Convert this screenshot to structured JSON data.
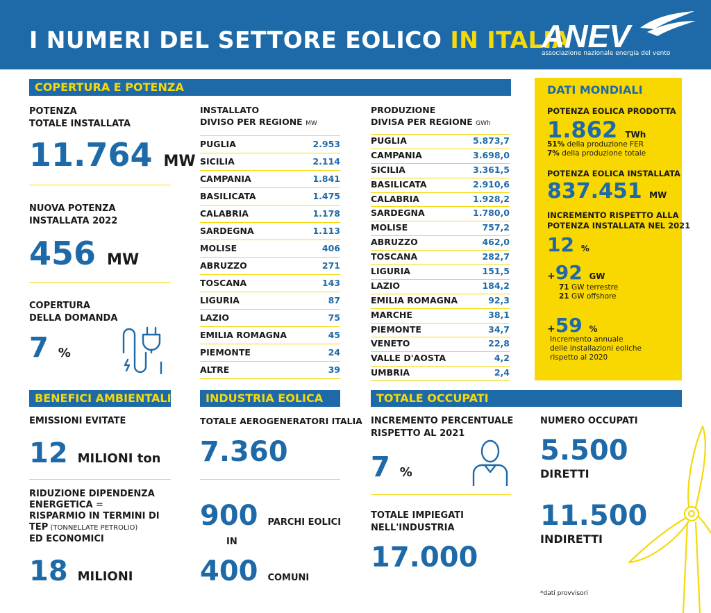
{
  "header": {
    "title_main": "I NUMERI DEL SETTORE EOLICO",
    "title_highlight": "IN ITALIA",
    "logo_text": "ANEV",
    "logo_subtitle": "associazione nazionale energia del vento"
  },
  "copertura": {
    "bar_label": "COPERTURA E POTENZA",
    "potenza_label_1": "POTENZA",
    "potenza_label_2": "TOTALE INSTALLATA",
    "potenza_value": "11.764",
    "potenza_unit": "MW",
    "nuova_label_1": "NUOVA POTENZA",
    "nuova_label_2": "INSTALLATA 2022",
    "nuova_value": "456",
    "nuova_unit": "MW",
    "domanda_label_1": "COPERTURA",
    "domanda_label_2": "DELLA DOMANDA",
    "domanda_value": "7",
    "domanda_unit": "%"
  },
  "installato": {
    "header_1": "INSTALLATO",
    "header_2": "DIVISO PER REGIONE",
    "unit": "MW",
    "rows": [
      {
        "region": "PUGLIA",
        "value": "2.953"
      },
      {
        "region": "SICILIA",
        "value": "2.114"
      },
      {
        "region": "CAMPANIA",
        "value": "1.841"
      },
      {
        "region": "BASILICATA",
        "value": "1.475"
      },
      {
        "region": "CALABRIA",
        "value": "1.178"
      },
      {
        "region": "SARDEGNA",
        "value": "1.113"
      },
      {
        "region": "MOLISE",
        "value": "406"
      },
      {
        "region": "ABRUZZO",
        "value": "271"
      },
      {
        "region": "TOSCANA",
        "value": "143"
      },
      {
        "region": "LIGURIA",
        "value": "87"
      },
      {
        "region": "LAZIO",
        "value": "75"
      },
      {
        "region": "EMILIA ROMAGNA",
        "value": "45"
      },
      {
        "region": "PIEMONTE",
        "value": "24"
      },
      {
        "region": "ALTRE",
        "value": "39"
      }
    ]
  },
  "produzione": {
    "header_1": "PRODUZIONE",
    "header_2": "DIVISA PER REGIONE",
    "unit": "GWh",
    "rows": [
      {
        "region": "PUGLIA",
        "value": "5.873,7"
      },
      {
        "region": "CAMPANIA",
        "value": "3.698,0"
      },
      {
        "region": "SICILIA",
        "value": "3.361,5"
      },
      {
        "region": "BASILICATA",
        "value": "2.910,6"
      },
      {
        "region": "CALABRIA",
        "value": "1.928,2"
      },
      {
        "region": "SARDEGNA",
        "value": "1.780,0"
      },
      {
        "region": "MOLISE",
        "value": "757,2"
      },
      {
        "region": "ABRUZZO",
        "value": "462,0"
      },
      {
        "region": "TOSCANA",
        "value": "282,7"
      },
      {
        "region": "LIGURIA",
        "value": "151,5"
      },
      {
        "region": "LAZIO",
        "value": "184,2"
      },
      {
        "region": "EMILIA ROMAGNA",
        "value": "92,3"
      },
      {
        "region": "MARCHE",
        "value": "38,1"
      },
      {
        "region": "PIEMONTE",
        "value": "34,7"
      },
      {
        "region": "VENETO",
        "value": "22,8"
      },
      {
        "region": "VALLE D'AOSTA",
        "value": "4,2"
      },
      {
        "region": "UMBRIA",
        "value": "2,4"
      }
    ]
  },
  "mondiali": {
    "title": "DATI MONDIALI",
    "prodotta_label": "POTENZA EOLICA PRODOTTA",
    "prodotta_value": "1.862",
    "prodotta_unit": "TWh",
    "prodotta_note_1_bold": "51%",
    "prodotta_note_1": "della produzione FER",
    "prodotta_note_2_bold": "7%",
    "prodotta_note_2": "della produzione totale",
    "installata_label": "POTENZA EOLICA INSTALLATA",
    "installata_value": "837.451",
    "installata_unit": "MW",
    "incremento_label_1": "INCREMENTO RISPETTO ALLA",
    "incremento_label_2": "POTENZA INSTALLATA NEL 2021",
    "incremento_value": "12",
    "incremento_unit": "%",
    "gw_plus": "+",
    "gw_value": "92",
    "gw_unit": "GW",
    "gw_terrestre_bold": "71",
    "gw_terrestre": "GW terrestre",
    "gw_offshore_bold": "21",
    "gw_offshore": "GW offshore",
    "annuale_plus": "+",
    "annuale_value": "59",
    "annuale_unit": "%",
    "annuale_note_1": "Incremento annuale",
    "annuale_note_2": "delle installazioni eoliche",
    "annuale_note_3": "rispetto al 2020"
  },
  "benefici": {
    "bar_label": "BENEFICI AMBIENTALI",
    "emissioni_label": "EMISSIONI EVITATE",
    "emissioni_value": "12",
    "emissioni_unit": "MILIONI ton",
    "riduzione_1": "RIDUZIONE DIPENDENZA",
    "riduzione_2a": "ENERGETICA",
    "riduzione_2b": " =",
    "riduzione_3": "RISPARMIO IN TERMINI DI",
    "riduzione_4a": "TEP",
    "riduzione_4b": " (TONNELLATE PETROLIO)",
    "riduzione_5": "ED ECONOMICI",
    "risparmio_value": "18",
    "risparmio_unit": "MILIONI"
  },
  "industria": {
    "bar_label": "INDUSTRIA EOLICA",
    "aerogeneratori_label": "TOTALE AEROGENERATORI ITALIA",
    "aerogeneratori_value": "7.360",
    "parchi_value": "900",
    "parchi_unit": "PARCHI EOLICI",
    "in_label": "IN",
    "comuni_value": "400",
    "comuni_unit": "COMUNI"
  },
  "occupati": {
    "bar_label": "TOTALE OCCUPATI",
    "incremento_label_1": "INCREMENTO PERCENTUALE",
    "incremento_label_2": "RISPETTO AL 2021",
    "incremento_value": "7",
    "incremento_unit": "%",
    "impiegati_label_1": "TOTALE IMPIEGATI",
    "impiegati_label_2": "NELL'INDUSTRIA",
    "impiegati_value": "17.000",
    "numero_label": "NUMERO OCCUPATI",
    "diretti_value": "5.500",
    "diretti_label": "DIRETTI",
    "indiretti_value": "11.500",
    "indiretti_label": "INDIRETTI",
    "footnote": "*dati provvisori"
  },
  "colors": {
    "blue": "#1e6aa8",
    "yellow": "#f5d90a",
    "box_yellow": "#f8d800"
  }
}
